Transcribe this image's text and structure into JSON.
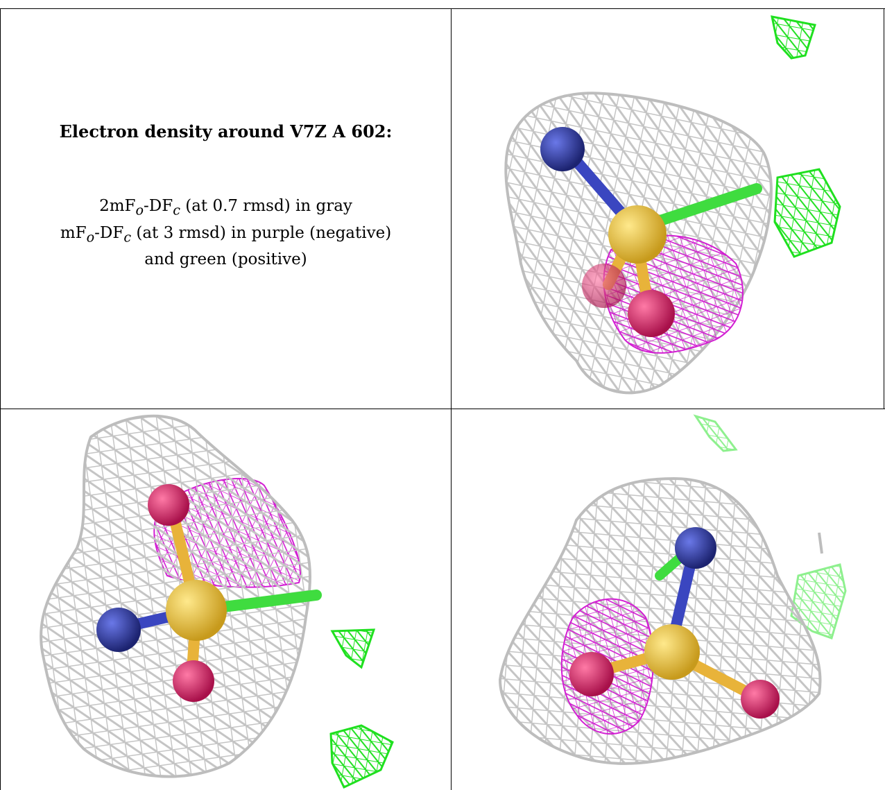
{
  "caption": {
    "title": "Electron density around V7Z A 602:",
    "line1_prefix": "2mF",
    "line1_sub_o": "o",
    "line1_mid": "-DF",
    "line1_sub_c": "c",
    "line1_suffix": " (at 0.7 rmsd) in gray",
    "line2_prefix": "mF",
    "line2_sub_o": "o",
    "line2_mid": "-DF",
    "line2_sub_c": "c",
    "line2_suffix": " (at 3 rmsd) in purple (negative)",
    "line3": "and green (positive)"
  },
  "colors": {
    "mesh_gray": "#c9c9c9",
    "mesh_negative": "#d21fd2",
    "mesh_positive": "#1fe01f",
    "mesh_positive_faded": "#8ef08e",
    "atom_nitrogen": "#2b36a8",
    "atom_vanadium": "#f2c94c",
    "atom_oxygen": "#e0286a",
    "bond_green": "#3fdc3f"
  },
  "panels": [
    {
      "view": "density view 1"
    },
    {
      "view": "density view 2"
    },
    {
      "view": "density view 3"
    }
  ]
}
